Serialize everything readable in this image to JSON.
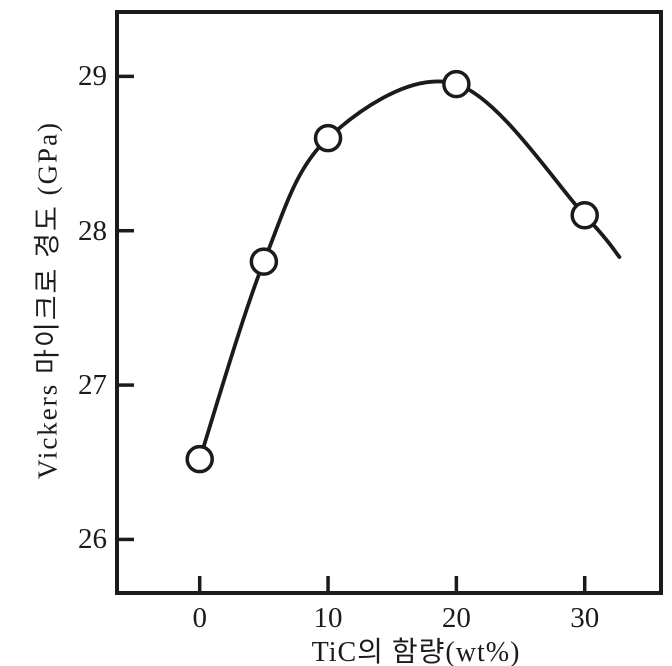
{
  "figure": {
    "background": "#ffffff",
    "ink_color": "#1b1b1b"
  },
  "chart_data": {
    "type": "line",
    "title": "",
    "xlabel": "TiC의 함량(wt%)",
    "ylabel": "Vickers 마이크로 경도 (GPa)",
    "x": [
      0,
      5,
      10,
      20,
      30
    ],
    "y": [
      26.52,
      27.8,
      28.6,
      28.95,
      28.1
    ],
    "curve_extension_point": {
      "x": 32.7,
      "y": 27.83
    },
    "x_ticks": [
      0,
      10,
      20,
      30
    ],
    "y_ticks": [
      26,
      27,
      28,
      29
    ],
    "xlim": [
      -6.6,
      36.1
    ],
    "ylim": [
      25.64,
      29.43
    ],
    "grid": false,
    "legend": false,
    "marker": "open-circle",
    "marker_fill": "#ffffff",
    "line_color": "#1b1b1b"
  }
}
